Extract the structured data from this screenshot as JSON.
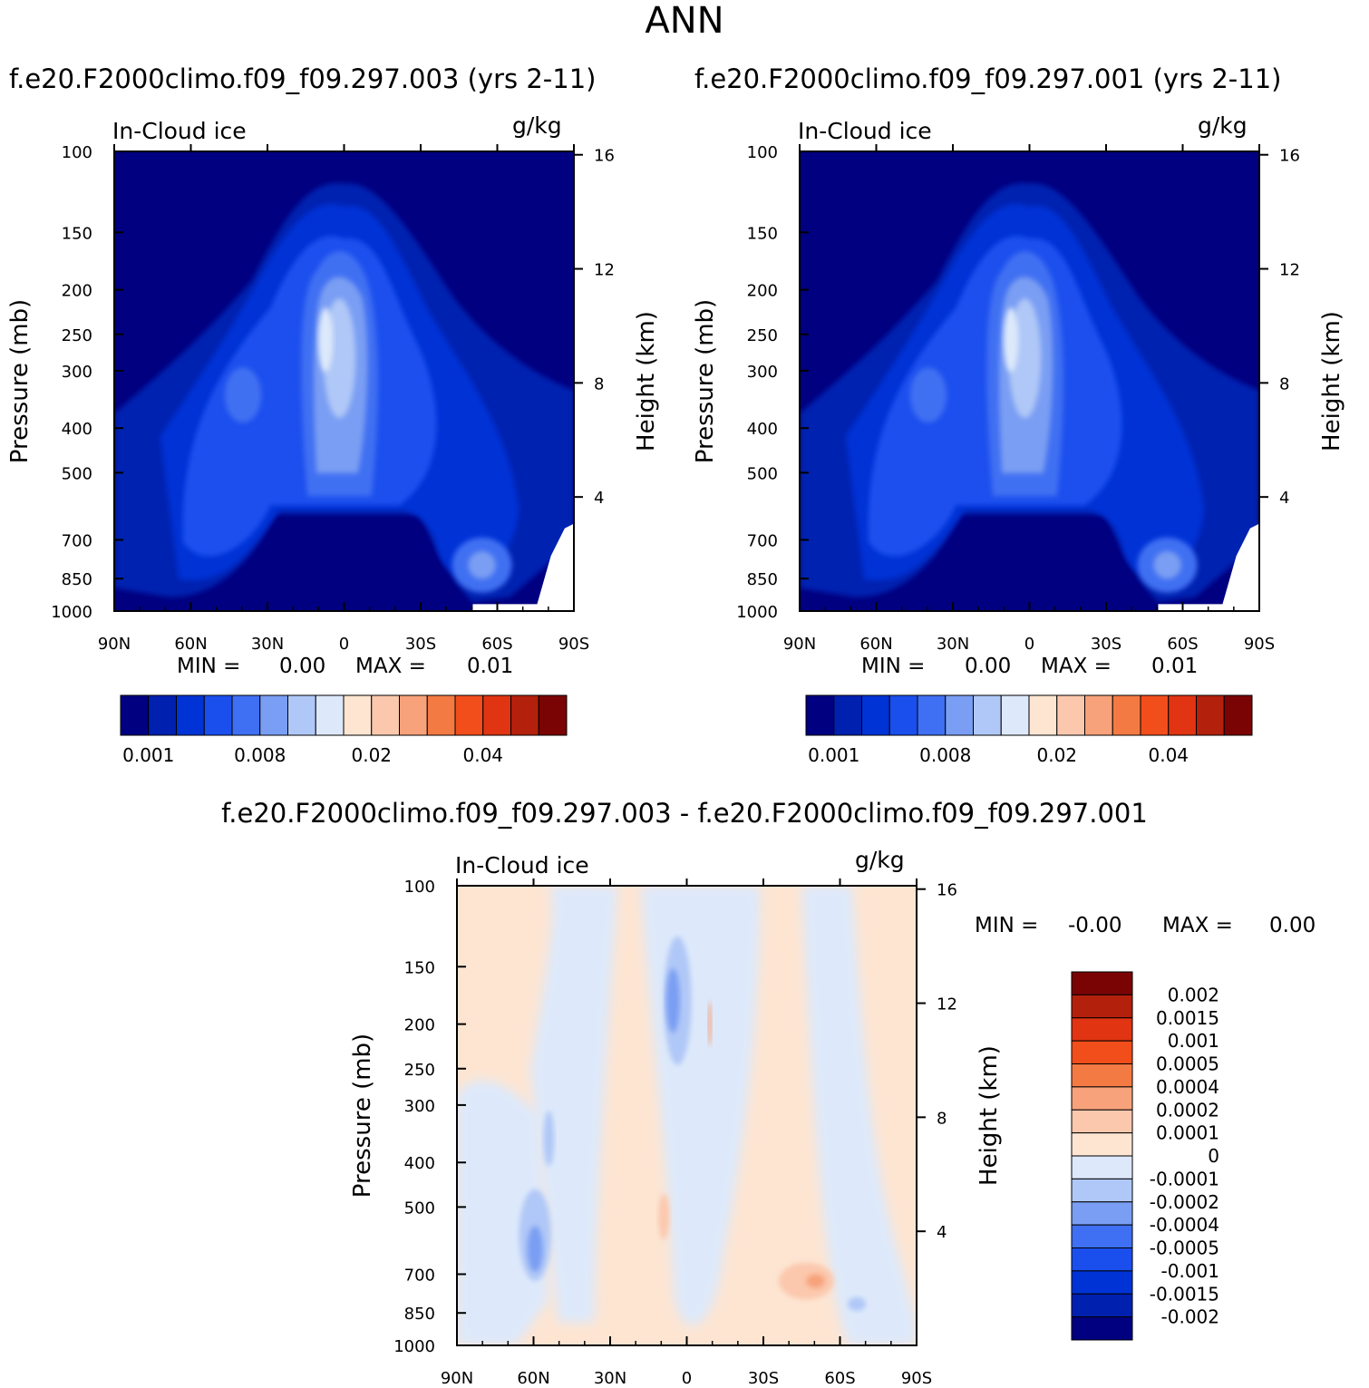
{
  "title": "ANN",
  "case_left_title": "f.e20.F2000climo.f09_f09.297.003 (yrs 2-11)",
  "case_right_title": "f.e20.F2000climo.f09_f09.297.001 (yrs 2-11)",
  "diff_title": "f.e20.F2000climo.f09_f09.297.003 - f.e20.F2000climo.f09_f09.297.001",
  "colors": {
    "abs_palette": [
      "#000080",
      "#0020b0",
      "#0033d6",
      "#1a4fee",
      "#3f6ff2",
      "#7a9ef3",
      "#b0c8f7",
      "#dde9fb",
      "#fde5d2",
      "#fbc8ad",
      "#f7a27a",
      "#f47a43",
      "#f24e1b",
      "#e03412",
      "#b3200c",
      "#7a0404"
    ],
    "diff_palette": [
      "#000080",
      "#0020b0",
      "#0033d6",
      "#1a4fee",
      "#3f6ff2",
      "#7a9ef3",
      "#b0c8f7",
      "#dde9fb",
      "#fde5d2",
      "#fbc8ad",
      "#f7a27a",
      "#f47a43",
      "#f24e1b",
      "#e03412",
      "#b3200c",
      "#7a0404"
    ]
  },
  "chart_data": [
    {
      "type": "heatmap",
      "id": "case-003",
      "title": "f.e20.F2000climo.f09_f09.297.003 (yrs 2-11)",
      "left_label": "In-Cloud ice",
      "right_label": "g/kg",
      "ylabel": "Pressure (mb)",
      "y2label": "Height (km)",
      "x_ticks": [
        "90N",
        "60N",
        "30N",
        "0",
        "30S",
        "60S",
        "90S"
      ],
      "y_ticks": [
        "100",
        "150",
        "200",
        "250",
        "300",
        "400",
        "500",
        "700",
        "850",
        "1000"
      ],
      "y2_ticks": [
        "16",
        "12",
        "8",
        "4"
      ],
      "min_label": "MIN =",
      "min_value": "0.00",
      "max_label": "MAX =",
      "max_value": "0.01",
      "colorbar_labels": [
        "0.001",
        "0.008",
        "0.02",
        "0.04"
      ]
    },
    {
      "type": "heatmap",
      "id": "case-001",
      "title": "f.e20.F2000climo.f09_f09.297.001 (yrs 2-11)",
      "left_label": "In-Cloud ice",
      "right_label": "g/kg",
      "ylabel": "Pressure (mb)",
      "y2label": "Height (km)",
      "x_ticks": [
        "90N",
        "60N",
        "30N",
        "0",
        "30S",
        "60S",
        "90S"
      ],
      "y_ticks": [
        "100",
        "150",
        "200",
        "250",
        "300",
        "400",
        "500",
        "700",
        "850",
        "1000"
      ],
      "y2_ticks": [
        "16",
        "12",
        "8",
        "4"
      ],
      "min_label": "MIN =",
      "min_value": "0.00",
      "max_label": "MAX =",
      "max_value": "0.01",
      "colorbar_labels": [
        "0.001",
        "0.008",
        "0.02",
        "0.04"
      ]
    },
    {
      "type": "heatmap",
      "id": "difference",
      "title": "f.e20.F2000climo.f09_f09.297.003 - f.e20.F2000climo.f09_f09.297.001",
      "left_label": "In-Cloud ice",
      "right_label": "g/kg",
      "ylabel": "Pressure (mb)",
      "y2label": "Height (km)",
      "x_ticks": [
        "90N",
        "60N",
        "30N",
        "0",
        "30S",
        "60S",
        "90S"
      ],
      "y_ticks": [
        "100",
        "150",
        "200",
        "250",
        "300",
        "400",
        "500",
        "700",
        "850",
        "1000"
      ],
      "y2_ticks": [
        "16",
        "12",
        "8",
        "4"
      ],
      "min_label": "MIN =",
      "min_value": "-0.00",
      "max_label": "MAX =",
      "max_value": "0.00",
      "colorbar_labels": [
        "0.002",
        "0.0015",
        "0.001",
        "0.0005",
        "0.0004",
        "0.0002",
        "0.0001",
        "0",
        "-0.0001",
        "-0.0002",
        "-0.0004",
        "-0.0005",
        "-0.001",
        "-0.0015",
        "-0.002"
      ]
    }
  ]
}
